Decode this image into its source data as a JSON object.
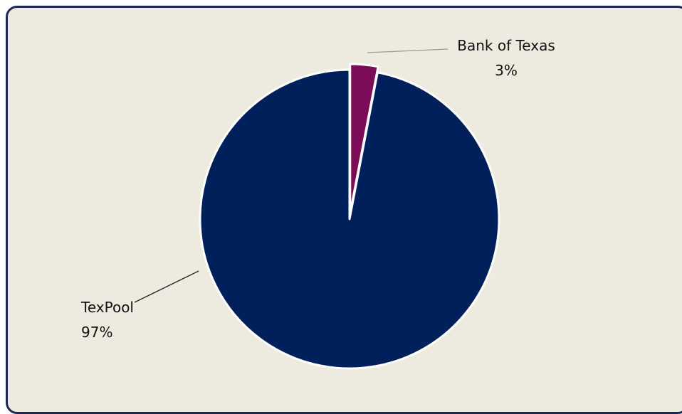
{
  "chart_data": {
    "type": "pie",
    "slices": [
      {
        "label": "Bank of Texas",
        "value": 3,
        "value_label": "3%",
        "color": "#7a0c58"
      },
      {
        "label": "TexPool",
        "value": 97,
        "value_label": "97%",
        "color": "#00205c"
      }
    ],
    "exploded_slice": "Bank of Texas",
    "slice_border_color": "#ffffff",
    "background_color": "#edeae0",
    "frame_border_color": "#1b2a55",
    "legend": "none"
  }
}
